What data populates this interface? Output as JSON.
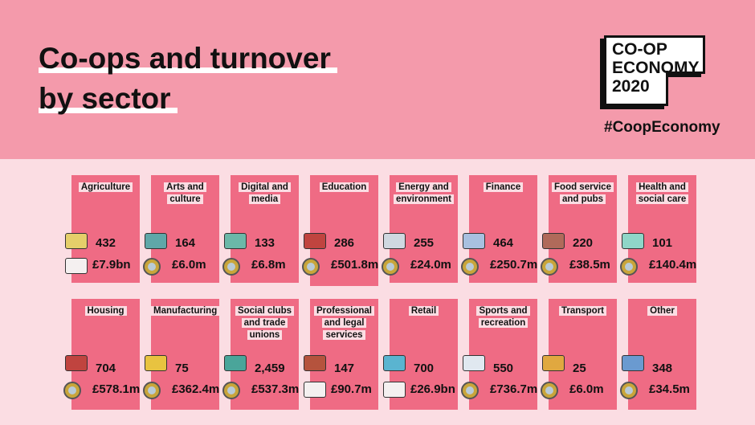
{
  "title_lines": [
    "Co-ops and turnover",
    "by sector"
  ],
  "logo": {
    "lines": [
      "CO-OP",
      "ECONOMY",
      "2020"
    ],
    "hashtag": "#CoopEconomy"
  },
  "sectors": [
    {
      "label": "Agriculture",
      "count": "432",
      "turnover": "£7.9bn",
      "icon": "hay-bale-icon",
      "icon2": "cow-icon",
      "color": "#e5cf6a"
    },
    {
      "label": "Arts and culture",
      "count": "164",
      "turnover": "£6.0m",
      "icon": "painting-icon",
      "icon2": "coin-icon",
      "color": "#5fa7a8"
    },
    {
      "label": "Digital and media",
      "count": "133",
      "turnover": "£6.8m",
      "icon": "people-icon",
      "icon2": "coin-icon",
      "color": "#6bb8a8"
    },
    {
      "label": "Education",
      "count": "286",
      "turnover": "£501.8m",
      "icon": "books-icon",
      "icon2": "coin-icon",
      "color": "#c0443f"
    },
    {
      "label": "Energy and environment",
      "count": "255",
      "turnover": "£24.0m",
      "icon": "wind-turbine-icon",
      "icon2": "coin-icon",
      "color": "#cfd8e0"
    },
    {
      "label": "Finance",
      "count": "464",
      "turnover": "£250.7m",
      "icon": "piggy-bank-icon",
      "icon2": "coin-icon",
      "color": "#a8c0e0"
    },
    {
      "label": "Food service and pubs",
      "count": "220",
      "turnover": "£38.5m",
      "icon": "pub-icon",
      "icon2": "coin-icon",
      "color": "#b06a5a"
    },
    {
      "label": "Health and social care",
      "count": "101",
      "turnover": "£140.4m",
      "icon": "medical-cross-icon",
      "icon2": "coin-icon",
      "color": "#8fd6c8"
    },
    {
      "label": "Housing",
      "count": "704",
      "turnover": "£578.1m",
      "icon": "house-icon",
      "icon2": "coin-icon",
      "color": "#c0443f"
    },
    {
      "label": "Manufacturing",
      "count": "75",
      "turnover": "£362.4m",
      "icon": "gear-icon",
      "icon2": "coin-icon",
      "color": "#e8c340"
    },
    {
      "label": "Social clubs and trade unions",
      "count": "2,459",
      "turnover": "£537.3m",
      "icon": "ping-pong-table-icon",
      "icon2": "coin-icon",
      "color": "#4aa59a"
    },
    {
      "label": "Professional and legal services",
      "count": "147",
      "turnover": "£90.7m",
      "icon": "gavel-icon",
      "icon2": "cow-icon",
      "color": "#b5533d"
    },
    {
      "label": "Retail",
      "count": "700",
      "turnover": "£26.9bn",
      "icon": "card-icon",
      "icon2": "cow-icon",
      "color": "#5ab4d0"
    },
    {
      "label": "Sports and recreation",
      "count": "550",
      "turnover": "£736.7m",
      "icon": "sailboat-icon",
      "icon2": "coin-icon",
      "color": "#e0e8f0"
    },
    {
      "label": "Transport",
      "count": "25",
      "turnover": "£6.0m",
      "icon": "tram-icon",
      "icon2": "coin-icon",
      "color": "#e0a840"
    },
    {
      "label": "Other",
      "count": "348",
      "turnover": "£34.5m",
      "icon": "blocks-icon",
      "icon2": "coin-icon",
      "color": "#6a9ad0"
    }
  ]
}
